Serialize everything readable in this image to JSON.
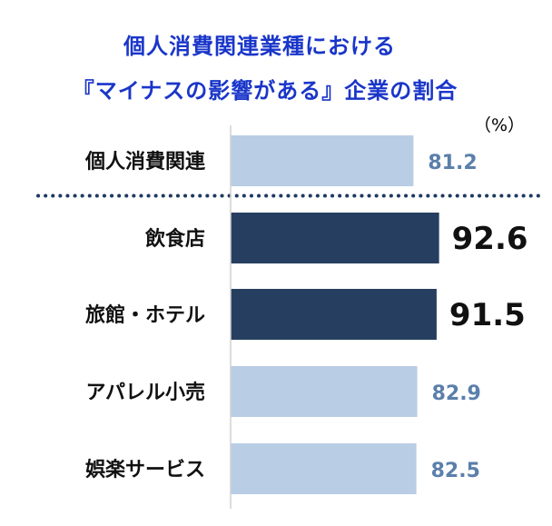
{
  "title_line1": "個人消費関連業種における",
  "title_line2": "『マイナスの影響がある』企業の割合",
  "unit": "（%）",
  "colors": {
    "title": "#1a36c9",
    "highlight_bar": "#263f60",
    "normal_bar": "#b9cde5",
    "normal_value": "#5b7fab",
    "separator": "#1f3a60"
  },
  "chart_data": {
    "type": "bar",
    "orientation": "horizontal",
    "categories": [
      "個人消費関連",
      "飲食店",
      "旅館・ホテル",
      "アパレル小売",
      "娯楽サービス"
    ],
    "values": [
      81.2,
      92.6,
      91.5,
      82.9,
      82.5
    ],
    "highlighted": [
      false,
      true,
      true,
      false,
      false
    ],
    "value_labels": [
      "81.2",
      "92.6",
      "91.5",
      "82.9",
      "82.5"
    ],
    "separator_after_index": 0,
    "title": "個人消費関連業種における『マイナスの影響がある』企業の割合",
    "unit": "%"
  }
}
